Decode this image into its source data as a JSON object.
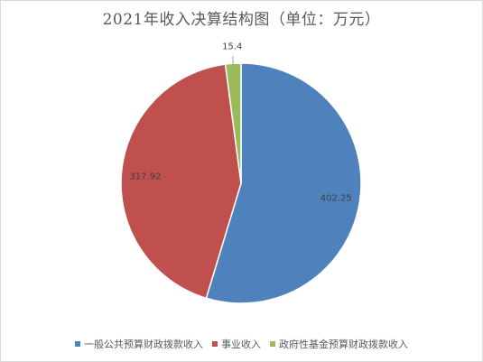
{
  "chart_data": {
    "type": "pie",
    "title": "2021年收入决算结构图（单位：万元）",
    "categories": [
      "一般公共预算财政拨款收入",
      "事业收入",
      "政府性基金预算财政拨款收入"
    ],
    "values": [
      402.25,
      317.92,
      15.4
    ],
    "data_labels": [
      "402.25",
      "317.92",
      "15.4"
    ],
    "colors": [
      "#4f81bd",
      "#c0504d",
      "#9bbb59"
    ],
    "legend_position": "bottom",
    "start_angle": "12 o'clock",
    "direction": "clockwise"
  }
}
